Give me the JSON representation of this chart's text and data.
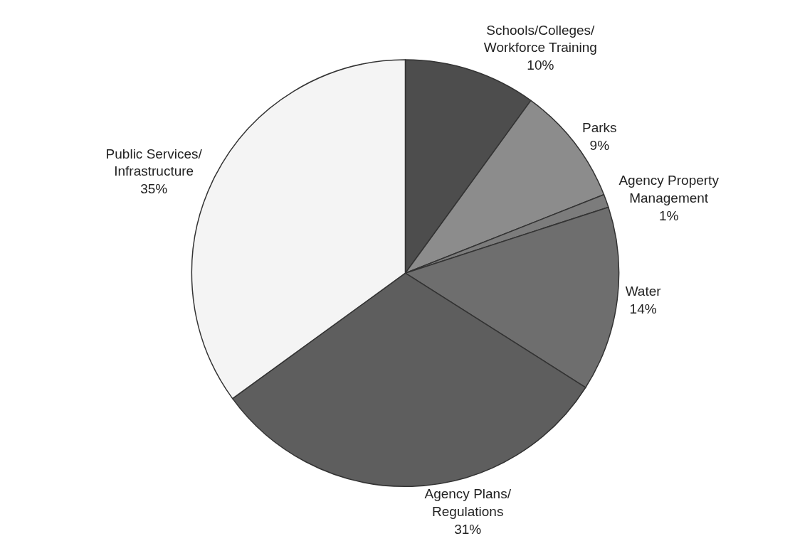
{
  "chart_data": {
    "type": "pie",
    "categories": [
      "Schools/Colleges/\nWorkforce Training",
      "Parks",
      "Agency Property\nManagement",
      "Water",
      "Agency Plans/\nRegulations",
      "Public Services/\nInfrastructure"
    ],
    "values": [
      10,
      9,
      1,
      14,
      31,
      35
    ],
    "value_labels": [
      "10%",
      "9%",
      "1%",
      "14%",
      "31%",
      "35%"
    ],
    "colors": [
      "#4d4d4d",
      "#8c8c8c",
      "#7c7c7c",
      "#6e6e6e",
      "#5e5e5e",
      "#f4f4f4"
    ],
    "legend": false
  }
}
